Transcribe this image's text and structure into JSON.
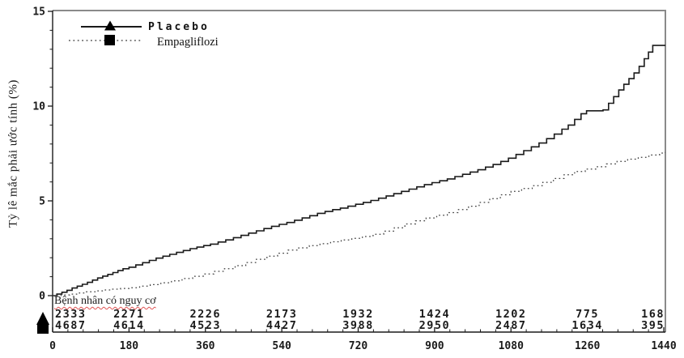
{
  "figure": {
    "y_axis_label": "Tỷ lê mắc phải ước tính (%)",
    "legend": [
      {
        "label": "Placebo",
        "line": "solid",
        "marker": "triangle"
      },
      {
        "label": "Empagliflozi",
        "line": "dotted",
        "marker": "square"
      }
    ],
    "risk_table_title": "Bệnh nhân có nguy cơ"
  },
  "colors": {
    "placebo_line": "#1a1a1a",
    "empagliflozin_line": "#3d3d3d",
    "plot_border": "#8a8a8a",
    "axis": "#1a1a1a",
    "spellcheck_underline": "#e05252"
  },
  "chart_data": {
    "type": "line",
    "subtype": "kaplan-meier-step",
    "title": "",
    "xlabel": "",
    "ylabel": "Tỷ lê mắc phải ước tính (%)",
    "xlim": [
      0,
      1440
    ],
    "ylim": [
      0,
      15
    ],
    "x_ticks": [
      0,
      180,
      360,
      540,
      720,
      900,
      1080,
      1260,
      1440
    ],
    "x_minor_step": 36,
    "y_ticks": [
      0,
      5,
      10,
      15
    ],
    "y_minor_step": 1,
    "grid": false,
    "legend_position": "top-left-inside",
    "series": [
      {
        "name": "Placebo",
        "style": "solid",
        "marker": "triangle",
        "x": [
          0,
          10,
          22,
          34,
          46,
          58,
          70,
          82,
          94,
          106,
          118,
          130,
          142,
          154,
          166,
          180,
          196,
          212,
          228,
          244,
          260,
          276,
          292,
          308,
          324,
          340,
          356,
          372,
          390,
          408,
          426,
          444,
          462,
          480,
          498,
          516,
          534,
          552,
          570,
          588,
          606,
          624,
          642,
          660,
          678,
          696,
          714,
          732,
          750,
          768,
          786,
          804,
          822,
          840,
          858,
          876,
          894,
          912,
          930,
          948,
          966,
          984,
          1002,
          1020,
          1038,
          1056,
          1074,
          1092,
          1110,
          1128,
          1146,
          1164,
          1182,
          1200,
          1215,
          1230,
          1245,
          1258,
          1297,
          1310,
          1322,
          1334,
          1346,
          1358,
          1370,
          1382,
          1394,
          1404,
          1414,
          1440
        ],
        "y": [
          0,
          0.08,
          0.18,
          0.28,
          0.4,
          0.5,
          0.6,
          0.7,
          0.82,
          0.93,
          1.03,
          1.12,
          1.22,
          1.32,
          1.42,
          1.5,
          1.62,
          1.74,
          1.86,
          1.98,
          2.08,
          2.18,
          2.28,
          2.38,
          2.48,
          2.56,
          2.64,
          2.72,
          2.83,
          2.94,
          3.06,
          3.18,
          3.3,
          3.42,
          3.54,
          3.66,
          3.76,
          3.86,
          3.98,
          4.1,
          4.22,
          4.34,
          4.44,
          4.54,
          4.62,
          4.72,
          4.82,
          4.92,
          5.02,
          5.14,
          5.26,
          5.38,
          5.5,
          5.62,
          5.74,
          5.86,
          5.96,
          6.06,
          6.16,
          6.28,
          6.4,
          6.52,
          6.64,
          6.78,
          6.92,
          7.08,
          7.25,
          7.45,
          7.65,
          7.85,
          8.05,
          8.28,
          8.52,
          8.78,
          9.0,
          9.3,
          9.6,
          9.75,
          9.8,
          10.15,
          10.5,
          10.85,
          11.15,
          11.45,
          11.75,
          12.1,
          12.5,
          12.85,
          13.2,
          13.2
        ]
      },
      {
        "name": "Empagliflozi",
        "style": "dotted",
        "marker": "square",
        "x": [
          0,
          20,
          40,
          60,
          80,
          100,
          120,
          140,
          160,
          180,
          205,
          230,
          255,
          280,
          305,
          330,
          355,
          380,
          405,
          430,
          455,
          480,
          505,
          530,
          555,
          580,
          605,
          630,
          655,
          680,
          705,
          730,
          755,
          780,
          805,
          830,
          855,
          880,
          905,
          930,
          955,
          980,
          1005,
          1030,
          1055,
          1080,
          1105,
          1130,
          1155,
          1180,
          1205,
          1230,
          1255,
          1280,
          1305,
          1330,
          1355,
          1380,
          1405,
          1430,
          1440
        ],
        "y": [
          0,
          0.04,
          0.08,
          0.14,
          0.2,
          0.25,
          0.3,
          0.34,
          0.38,
          0.42,
          0.5,
          0.58,
          0.68,
          0.78,
          0.9,
          1.02,
          1.14,
          1.28,
          1.42,
          1.58,
          1.75,
          1.92,
          2.08,
          2.24,
          2.4,
          2.52,
          2.64,
          2.74,
          2.84,
          2.94,
          3.02,
          3.12,
          3.24,
          3.4,
          3.58,
          3.78,
          3.95,
          4.1,
          4.24,
          4.38,
          4.54,
          4.72,
          4.92,
          5.12,
          5.32,
          5.5,
          5.65,
          5.8,
          5.98,
          6.18,
          6.38,
          6.55,
          6.68,
          6.8,
          6.95,
          7.08,
          7.2,
          7.3,
          7.42,
          7.52,
          7.55
        ]
      }
    ],
    "number_at_risk": {
      "title": "Bệnh nhân có nguy cơ",
      "times": [
        0,
        180,
        360,
        540,
        720,
        900,
        1080,
        1260,
        1440
      ],
      "rows": [
        {
          "name": "Placebo",
          "values": [
            2333,
            2271,
            2226,
            2173,
            1932,
            1424,
            1202,
            775,
            168
          ]
        },
        {
          "name": "Empagliflozi",
          "values": [
            4687,
            4614,
            4523,
            4427,
            3988,
            2950,
            2487,
            1634,
            395
          ]
        }
      ]
    }
  }
}
